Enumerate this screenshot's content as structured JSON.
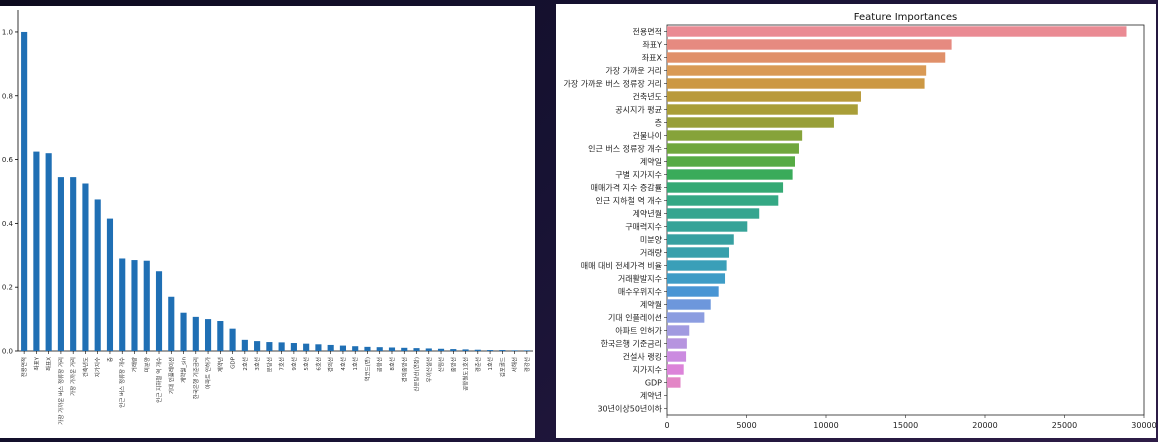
{
  "chart_data": [
    {
      "type": "bar",
      "orientation": "vertical",
      "bar_color": "#1f6fb4",
      "title": "",
      "xlabel": "",
      "ylabel": "",
      "ylim": [
        0,
        1.05
      ],
      "yticks": [
        "0.0",
        "0.2",
        "0.4",
        "0.6",
        "0.8",
        "1.0"
      ],
      "grid": false,
      "categories": [
        "전용면적",
        "좌표Y",
        "좌표X",
        "가장 가까운 버스 정류장 거리",
        "가장 가까운 거리",
        "건축년도",
        "지가지수",
        "층",
        "인근 버스 정류장 개수",
        "거래량",
        "미분양",
        "인근 지하철 역 개수",
        "기대 인플레이션",
        "계약월_sin",
        "한국은행 기준금리",
        "아파트 인허가",
        "계약년",
        "GDP",
        "2호선",
        "3호선",
        "분당선",
        "7호선",
        "9호선",
        "5호선",
        "6호선",
        "경의선",
        "4호선",
        "1호선",
        "역코드(면)",
        "공항선",
        "8호선",
        "경의중앙선",
        "신분당선(연장)",
        "우이신설선",
        "신림선",
        "중앙선",
        "공항철도1호선",
        "경춘선",
        "1호선",
        "김포골드",
        "서해선",
        "경강선"
      ],
      "values": [
        1.0,
        0.625,
        0.62,
        0.545,
        0.545,
        0.525,
        0.475,
        0.415,
        0.29,
        0.285,
        0.283,
        0.25,
        0.17,
        0.12,
        0.107,
        0.1,
        0.094,
        0.07,
        0.035,
        0.031,
        0.028,
        0.027,
        0.025,
        0.023,
        0.021,
        0.019,
        0.017,
        0.015,
        0.013,
        0.012,
        0.011,
        0.01,
        0.009,
        0.008,
        0.007,
        0.006,
        0.005,
        0.004,
        0.003,
        0.003,
        0.002,
        0.002
      ]
    },
    {
      "type": "bar",
      "orientation": "horizontal",
      "title": "Feature Importances",
      "xlabel": "",
      "ylabel": "",
      "xlim": [
        0,
        30000
      ],
      "xticks": [
        "0",
        "5000",
        "10000",
        "15000",
        "20000",
        "25000",
        "30000"
      ],
      "grid": false,
      "categories": [
        "전용면적",
        "좌표Y",
        "좌표X",
        "가장 가까운 거리",
        "가장 가까운 버스 정류장 거리",
        "건축년도",
        "공시지가 평균",
        "층",
        "건물나이",
        "인근 버스 정류장 개수",
        "계약일",
        "구별 지가지수",
        "매매가격 지수 증감률",
        "인근 지하철 역 개수",
        "계약년월",
        "구매력지수",
        "미분양",
        "거래량",
        "매매 대비 전세가격 비율",
        "거래활발지수",
        "매수우위지수",
        "계약월",
        "기대 인플레이션",
        "아파트 인허가",
        "한국은행 기준금리",
        "건설사 랭킹",
        "지가지수",
        "GDP",
        "계약년",
        "30년이상50년이하"
      ],
      "values": [
        28900,
        17900,
        17500,
        16300,
        16200,
        12200,
        12000,
        10500,
        8500,
        8300,
        8050,
        7900,
        7300,
        7000,
        5800,
        5050,
        4200,
        3900,
        3750,
        3650,
        3250,
        2750,
        2350,
        1400,
        1250,
        1200,
        1050,
        850,
        0,
        0
      ],
      "colors": [
        "#ea8a93",
        "#e68a80",
        "#e0906a",
        "#d99a55",
        "#cc9843",
        "#b99a3b",
        "#a99e38",
        "#989f38",
        "#86a33a",
        "#70a73d",
        "#56ab44",
        "#3aab5a",
        "#35a974",
        "#34a884",
        "#35a58f",
        "#36a398",
        "#37a0a1",
        "#38a0ac",
        "#3a9fb8",
        "#3e9cc6",
        "#4895d4",
        "#6d97dc",
        "#8c9de0",
        "#a19ae0",
        "#b694df",
        "#cb8be0",
        "#dc83d9",
        "#e386c6",
        "#e489b4",
        "#e88aa5"
      ]
    }
  ]
}
